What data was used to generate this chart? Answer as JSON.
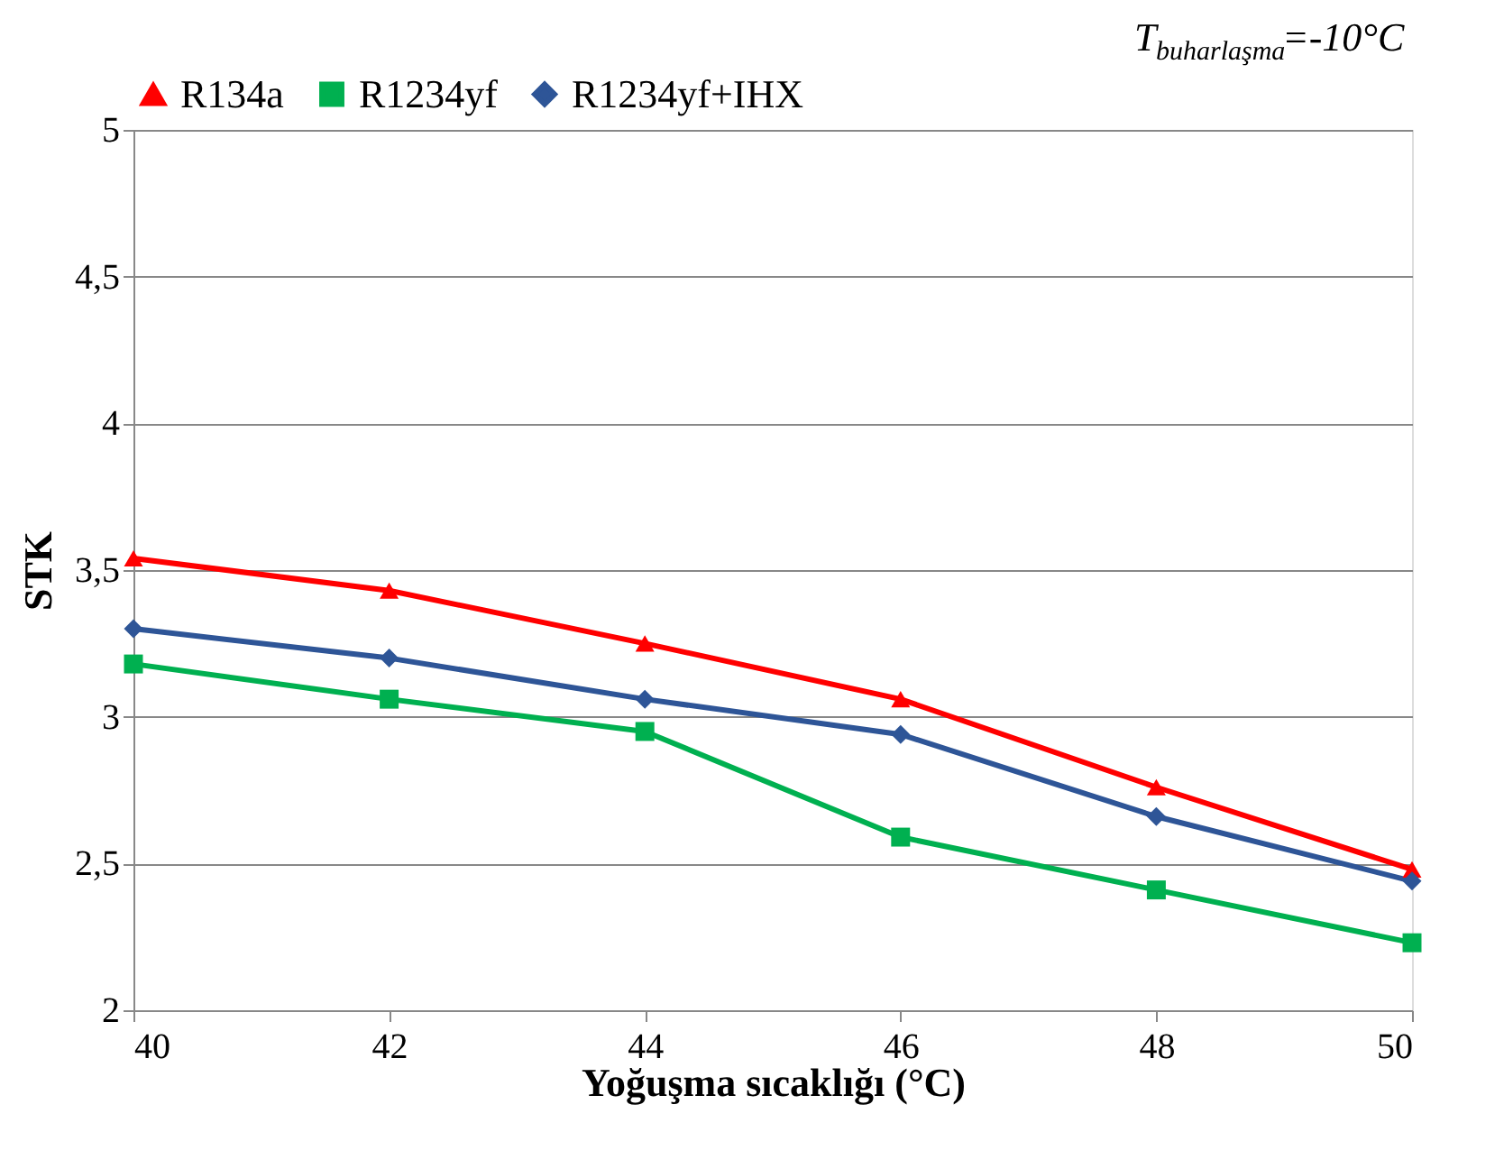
{
  "chart_data": {
    "type": "line",
    "xlabel": "Yoğuşma sıcaklığı (°C)",
    "ylabel": "STK",
    "x": [
      40,
      42,
      44,
      46,
      48,
      50
    ],
    "series": [
      {
        "name": "R134a",
        "color": "#ff0000",
        "marker": "triangle",
        "values": [
          3.54,
          3.43,
          3.25,
          3.06,
          2.76,
          2.48
        ]
      },
      {
        "name": "R1234yf",
        "color": "#00b050",
        "marker": "square",
        "values": [
          3.18,
          3.06,
          2.95,
          2.59,
          2.41,
          2.23
        ]
      },
      {
        "name": "R1234yf+IHX",
        "color": "#2e5597",
        "marker": "diamond",
        "values": [
          3.3,
          3.2,
          3.06,
          2.94,
          2.66,
          2.44
        ]
      }
    ],
    "xlim": [
      40,
      50
    ],
    "xticks": [
      40,
      42,
      44,
      46,
      48,
      50
    ],
    "ylim": [
      2,
      5
    ],
    "yticks": [
      2,
      {
        "value": 2.5,
        "label": "2,5"
      },
      3,
      {
        "value": 3.5,
        "label": "3,5"
      },
      4,
      {
        "value": 4.5,
        "label": "4,5"
      },
      5
    ],
    "grid": "y",
    "legend": "top",
    "line_style": "solid",
    "annotations": [
      "T$_{buharlaşma}$=-10°C"
    ]
  }
}
